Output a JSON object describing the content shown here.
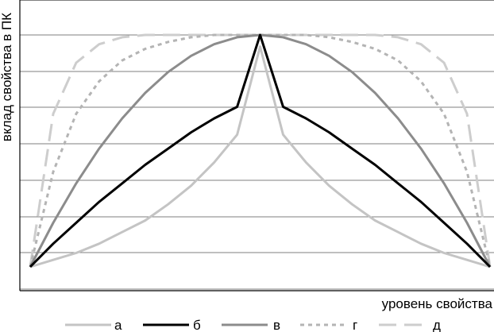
{
  "chart_data": {
    "type": "line",
    "xlabel": "уровень свойства",
    "ylabel": "вклад свойства в ПК",
    "title": "",
    "grid": true,
    "gridline_count": 7,
    "legend_position": "bottom",
    "x": [
      0,
      0.05,
      0.1,
      0.15,
      0.2,
      0.25,
      0.3,
      0.35,
      0.4,
      0.45,
      0.5,
      0.55,
      0.6,
      0.65,
      0.7,
      0.75,
      0.8,
      0.85,
      0.9,
      0.95,
      1
    ],
    "xlim": [
      0,
      1
    ],
    "ylim": [
      0,
      1.05
    ],
    "series": [
      {
        "name": "а",
        "color": "#c4c4c4",
        "dash": "solid",
        "values": [
          0,
          0.03,
          0.06,
          0.1,
          0.15,
          0.2,
          0.27,
          0.35,
          0.45,
          0.57,
          0.95,
          0.57,
          0.45,
          0.35,
          0.27,
          0.2,
          0.15,
          0.1,
          0.06,
          0.03,
          0
        ]
      },
      {
        "name": "б",
        "color": "#000000",
        "dash": "solid",
        "values": [
          0,
          0.1,
          0.19,
          0.28,
          0.36,
          0.44,
          0.51,
          0.58,
          0.64,
          0.69,
          1.0,
          0.69,
          0.64,
          0.58,
          0.51,
          0.44,
          0.36,
          0.28,
          0.19,
          0.1,
          0
        ]
      },
      {
        "name": "в",
        "color": "#8c8c8c",
        "dash": "solid",
        "values": [
          0,
          0.19,
          0.36,
          0.51,
          0.64,
          0.75,
          0.84,
          0.91,
          0.96,
          0.99,
          1.0,
          0.99,
          0.96,
          0.91,
          0.84,
          0.75,
          0.64,
          0.51,
          0.36,
          0.19,
          0
        ]
      },
      {
        "name": "г",
        "color": "#b4b4b4",
        "dash": "dotted",
        "values": [
          0,
          0.41,
          0.66,
          0.8,
          0.89,
          0.94,
          0.97,
          0.99,
          1.0,
          1.0,
          1.0,
          1.0,
          1.0,
          0.99,
          0.97,
          0.94,
          0.89,
          0.8,
          0.66,
          0.41,
          0
        ]
      },
      {
        "name": "д",
        "color": "#cdcdcd",
        "dash": "dashed",
        "values": [
          0,
          0.66,
          0.88,
          0.96,
          0.99,
          1.0,
          1.0,
          1.0,
          1.0,
          1.0,
          1.0,
          1.0,
          1.0,
          1.0,
          1.0,
          1.0,
          0.99,
          0.96,
          0.88,
          0.66,
          0
        ]
      }
    ]
  }
}
